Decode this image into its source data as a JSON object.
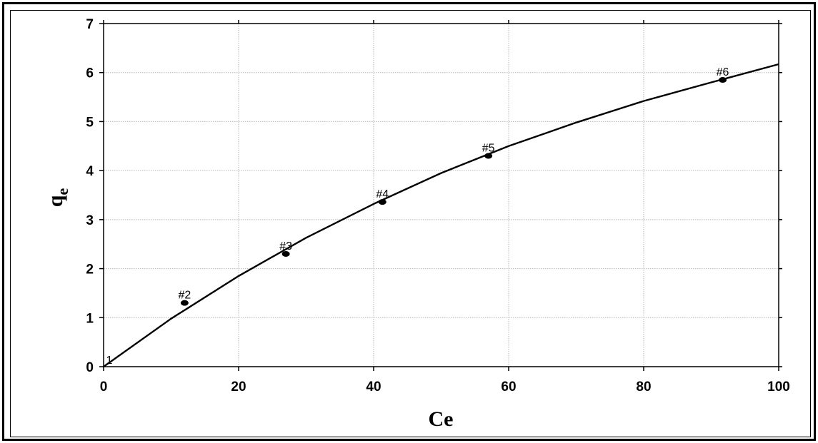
{
  "chart_data": {
    "type": "scatter",
    "xlabel": "Ce",
    "ylabel": "q",
    "ylabel_subscript": "e",
    "xlim": [
      0,
      100
    ],
    "ylim": [
      0,
      7
    ],
    "xticks": [
      0,
      20,
      40,
      60,
      80,
      100
    ],
    "yticks": [
      0,
      1,
      2,
      3,
      4,
      5,
      6,
      7
    ],
    "grid": true,
    "points": [
      {
        "label": "1",
        "x": 0,
        "y": 0
      },
      {
        "label": "#2",
        "x": 12,
        "y": 1.3
      },
      {
        "label": "#3",
        "x": 27,
        "y": 2.3
      },
      {
        "label": "#4",
        "x": 41.3,
        "y": 3.36
      },
      {
        "label": "#5",
        "x": 57,
        "y": 4.3
      },
      {
        "label": "#6",
        "x": 91.7,
        "y": 5.85
      }
    ],
    "fit_curve": {
      "type": "line",
      "x": [
        0,
        10,
        20,
        30,
        40,
        50,
        60,
        70,
        80,
        90,
        100
      ],
      "y": [
        0,
        0.98,
        1.85,
        2.63,
        3.32,
        3.95,
        4.5,
        4.98,
        5.42,
        5.8,
        6.17
      ]
    }
  }
}
